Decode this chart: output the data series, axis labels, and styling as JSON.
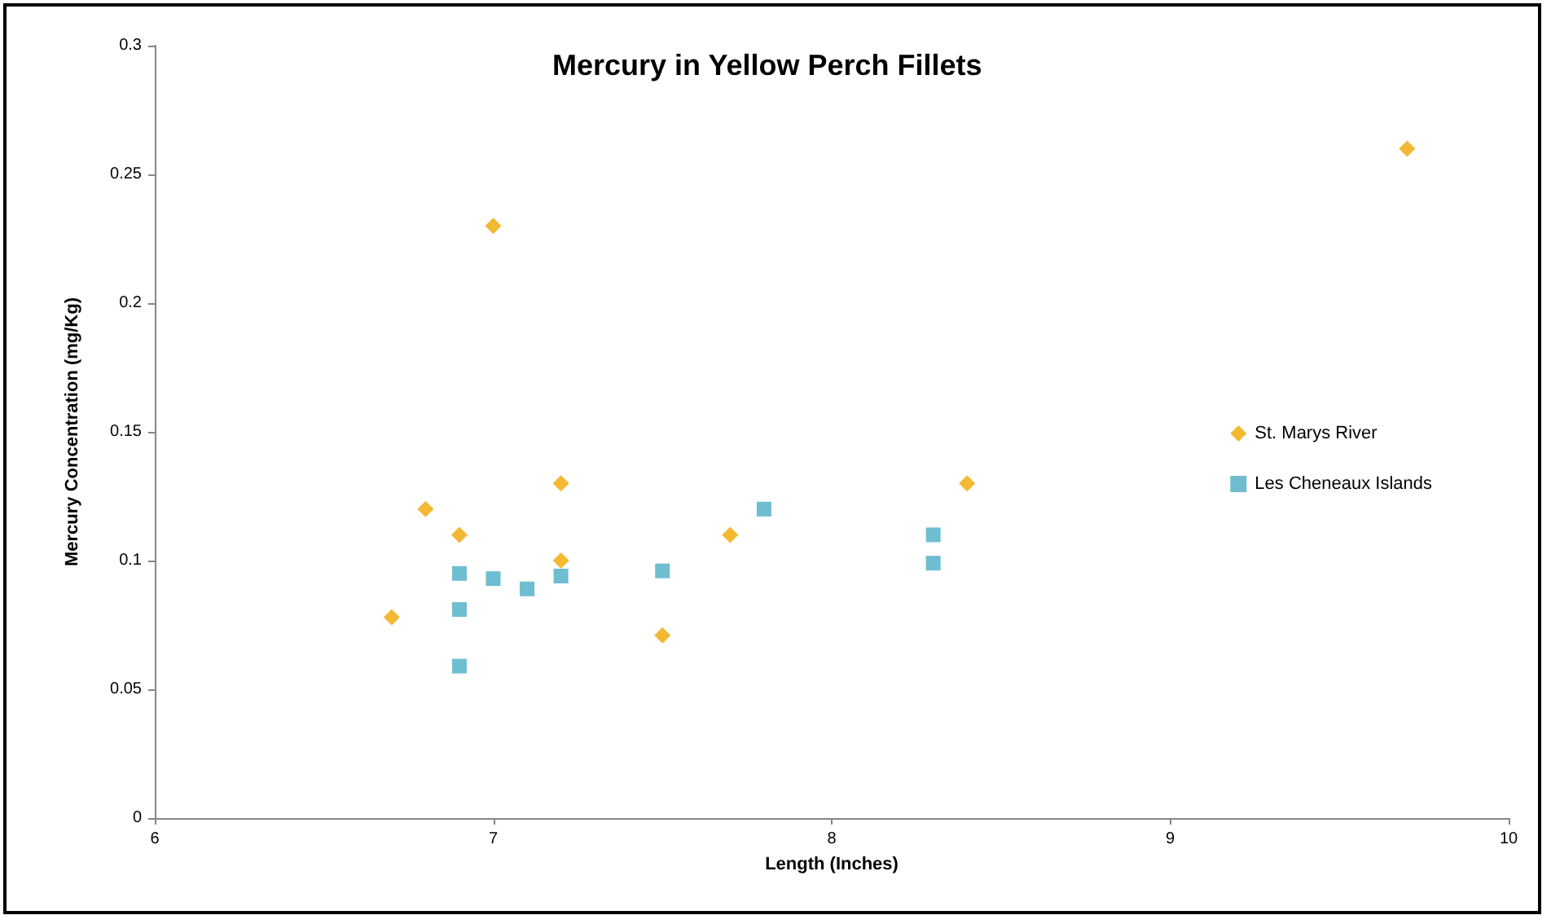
{
  "chart_data": {
    "type": "scatter",
    "title": "Mercury in Yellow Perch Fillets",
    "xlabel": "Length (Inches)",
    "ylabel": "Mercury Concentration (mg/Kg)",
    "series": [
      {
        "name": "St. Marys River",
        "color": "#f0a800",
        "marker": "diamond",
        "x": [
          6.7,
          6.8,
          6.9,
          7.0,
          7.2,
          7.2,
          7.5,
          7.7,
          8.4,
          9.7
        ],
        "values": [
          0.078,
          0.12,
          0.11,
          0.23,
          0.13,
          0.1,
          0.071,
          0.11,
          0.13,
          0.26
        ]
      },
      {
        "name": "Les Cheneaux Islands",
        "color": "#4bacc6",
        "marker": "square",
        "x": [
          6.9,
          6.9,
          6.9,
          7.0,
          7.1,
          7.2,
          7.5,
          7.8,
          8.3,
          8.3
        ],
        "values": [
          0.095,
          0.081,
          0.059,
          0.093,
          0.089,
          0.094,
          0.096,
          0.12,
          0.11,
          0.099
        ]
      }
    ],
    "xlim": [
      6,
      10
    ],
    "xticks": [
      6,
      7,
      8,
      9,
      10
    ],
    "ylim": [
      0,
      0.3
    ],
    "yticks": [
      0,
      0.05,
      0.1,
      0.15,
      0.2,
      0.25,
      0.3
    ],
    "grid": false,
    "legend": "right"
  }
}
